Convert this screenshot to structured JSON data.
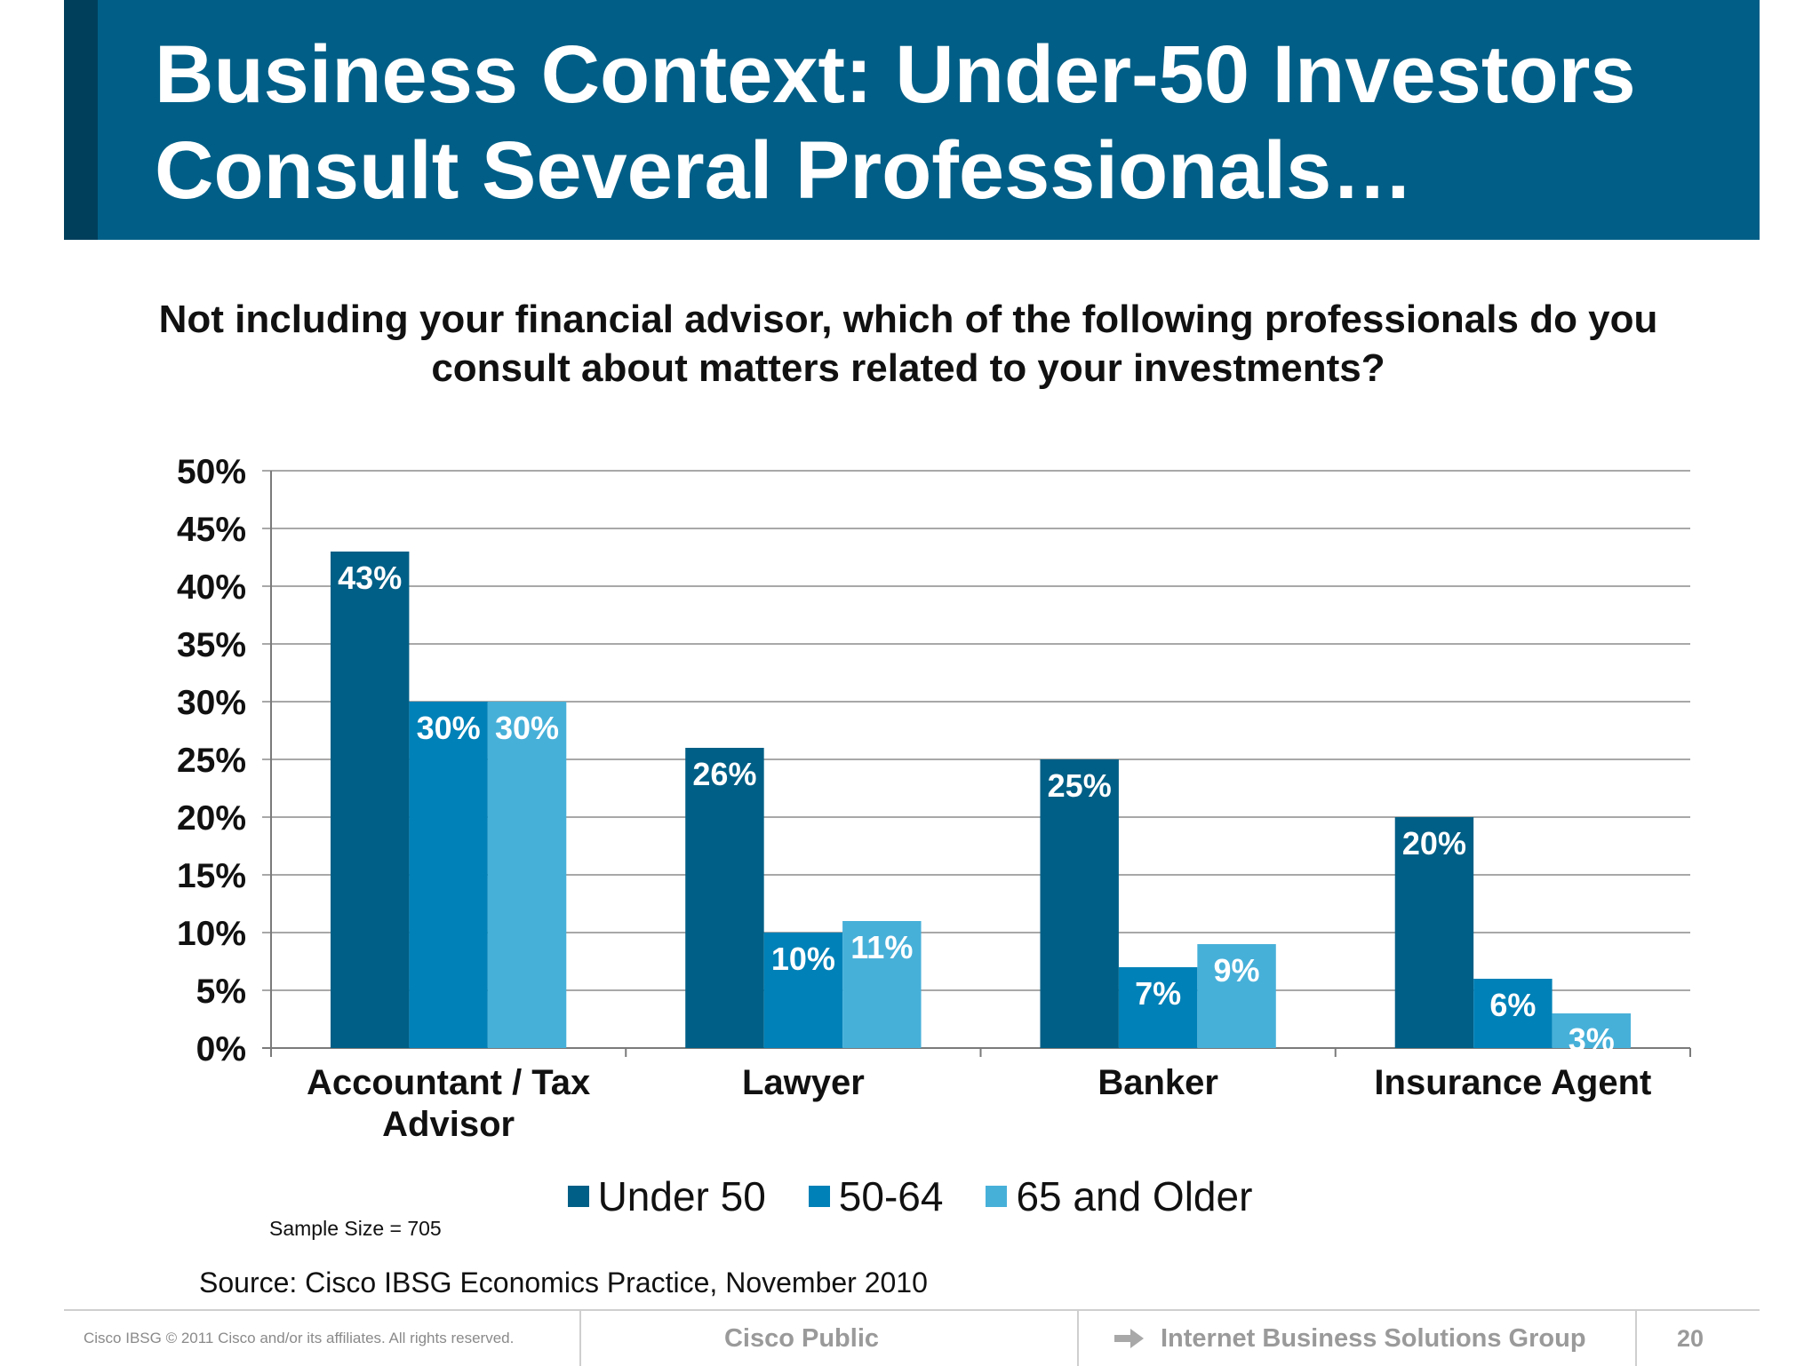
{
  "slide": {
    "title_line1": "Business Context: Under-50 Investors",
    "title_line2": "Consult Several Professionals…",
    "question_line1": "Not including your financial advisor, which of the following professionals do you",
    "question_line2": "consult about matters related to your investments?",
    "sample_size": "Sample Size = 705",
    "source": "Source: Cisco IBSG Economics Practice, November 2010"
  },
  "footer": {
    "copyright": "Cisco IBSG © 2011 Cisco and/or its affiliates. All rights reserved.",
    "classification": "Cisco Public",
    "group": "Internet Business Solutions Group",
    "page": "20",
    "arrow_icon": "right-arrow-icon"
  },
  "colors": {
    "title_bar": "#015f87",
    "title_accent": "#003f5c",
    "under_50": "#005f86",
    "age_50_64": "#0081b7",
    "age_65_older": "#47b0d9"
  },
  "chart_data": {
    "type": "bar",
    "categories": [
      [
        "Accountant / Tax",
        "Advisor"
      ],
      [
        "Lawyer"
      ],
      [
        "Banker"
      ],
      [
        "Insurance Agent"
      ]
    ],
    "series": [
      {
        "name": "Under 50",
        "values": [
          43,
          26,
          25,
          20
        ],
        "labels": [
          "43%",
          "26%",
          "25%",
          "20%"
        ],
        "color": "#005f86"
      },
      {
        "name": "50-64",
        "values": [
          30,
          10,
          7,
          6
        ],
        "labels": [
          "30%",
          "10%",
          "7%",
          "6%"
        ],
        "color": "#0081b7"
      },
      {
        "name": "65 and Older",
        "values": [
          30,
          11,
          9,
          3
        ],
        "labels": [
          "30%",
          "11%",
          "9%",
          "3%"
        ],
        "color": "#47b0d9"
      }
    ],
    "ylim": [
      0,
      50
    ],
    "yticks": [
      "0%",
      "5%",
      "10%",
      "15%",
      "20%",
      "25%",
      "30%",
      "35%",
      "40%",
      "45%",
      "50%"
    ],
    "grid": true,
    "legend_position": "bottom"
  }
}
